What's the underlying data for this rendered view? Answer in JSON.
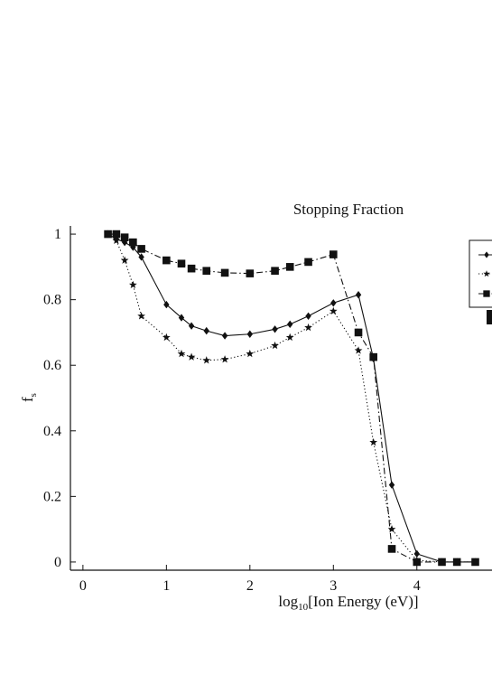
{
  "chart_data": {
    "type": "line",
    "title": "Stopping Fraction",
    "xlabel": {
      "prefix": "log",
      "sub": "10",
      "suffix": "[Ion Energy (eV)]"
    },
    "ylabel": {
      "main": "f",
      "sub": "s"
    },
    "xlim": [
      -0.15,
      4.9
    ],
    "ylim": [
      -0.025,
      1.025
    ],
    "x_ticks": [
      "0",
      "1",
      "2",
      "3",
      "4"
    ],
    "y_ticks": [
      "0",
      "0.2",
      "0.4",
      "0.6",
      "0.8",
      "1"
    ],
    "grid": false,
    "legend_position": "top-right",
    "series": [
      {
        "marker": "diamond",
        "line": "solid",
        "x": [
          0.3,
          0.4,
          0.5,
          0.6,
          0.7,
          1.0,
          1.18,
          1.3,
          1.48,
          1.7,
          2.0,
          2.3,
          2.48,
          2.7,
          3.0,
          3.3,
          3.48,
          3.7,
          4.0,
          4.3,
          4.48,
          4.7
        ],
        "y": [
          1.0,
          0.985,
          0.975,
          0.96,
          0.93,
          0.785,
          0.745,
          0.72,
          0.705,
          0.69,
          0.695,
          0.71,
          0.725,
          0.75,
          0.79,
          0.815,
          0.62,
          0.235,
          0.025,
          0.0,
          0.0,
          0.0
        ]
      },
      {
        "marker": "star",
        "line": "dotted",
        "x": [
          0.3,
          0.4,
          0.5,
          0.6,
          0.7,
          1.0,
          1.18,
          1.3,
          1.48,
          1.7,
          2.0,
          2.3,
          2.48,
          2.7,
          3.0,
          3.3,
          3.48,
          3.7,
          4.0,
          4.3,
          4.48,
          4.7
        ],
        "y": [
          1.0,
          0.98,
          0.92,
          0.845,
          0.75,
          0.685,
          0.635,
          0.625,
          0.615,
          0.618,
          0.635,
          0.66,
          0.685,
          0.715,
          0.765,
          0.645,
          0.365,
          0.1,
          0.005,
          0.0,
          0.0,
          0.0
        ]
      },
      {
        "marker": "square",
        "line": "dashdot",
        "x": [
          0.3,
          0.4,
          0.5,
          0.6,
          0.7,
          1.0,
          1.18,
          1.3,
          1.48,
          1.7,
          2.0,
          2.3,
          2.48,
          2.7,
          3.0,
          3.3,
          3.48,
          3.7,
          4.0,
          4.3,
          4.48,
          4.7
        ],
        "y": [
          1.0,
          1.0,
          0.99,
          0.975,
          0.955,
          0.92,
          0.91,
          0.895,
          0.888,
          0.882,
          0.88,
          0.888,
          0.9,
          0.915,
          0.938,
          0.7,
          0.625,
          0.04,
          0.0,
          0.0,
          0.0,
          0.0
        ]
      }
    ]
  }
}
